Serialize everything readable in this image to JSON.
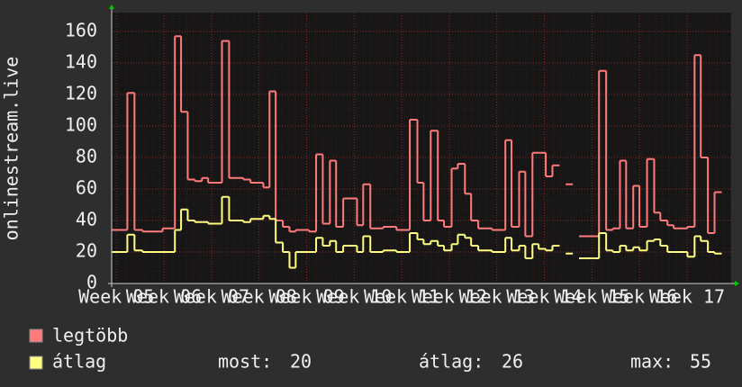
{
  "chart_data": {
    "type": "step",
    "y_label": "onlinestream.live",
    "xlim": [
      4.9,
      17.93
    ],
    "ylim": [
      0,
      172
    ],
    "yticks": [
      0,
      20,
      40,
      60,
      80,
      100,
      120,
      140,
      160
    ],
    "xticks": [
      {
        "value": 5,
        "label": "Week 05"
      },
      {
        "value": 6,
        "label": "Week 06"
      },
      {
        "value": 7,
        "label": "Week 07"
      },
      {
        "value": 8,
        "label": "Week 08"
      },
      {
        "value": 9,
        "label": "Week 09"
      },
      {
        "value": 10,
        "label": "Week 10"
      },
      {
        "value": 11,
        "label": "Week 11"
      },
      {
        "value": 12,
        "label": "Week 12"
      },
      {
        "value": 13,
        "label": "Week 13"
      },
      {
        "value": 14,
        "label": "Week 14"
      },
      {
        "value": 15,
        "label": "Week 15"
      },
      {
        "value": 16,
        "label": "Week 16"
      },
      {
        "value": 17,
        "label": "Week 17"
      }
    ],
    "grid": true,
    "x": [
      4.91,
      5.23,
      5.38,
      5.55,
      5.97,
      6.23,
      6.36,
      6.5,
      6.65,
      6.8,
      6.93,
      7.22,
      7.37,
      7.67,
      7.82,
      8.09,
      8.22,
      8.35,
      8.5,
      8.64,
      8.77,
      9.05,
      9.2,
      9.34,
      9.49,
      9.62,
      9.77,
      10.06,
      10.19,
      10.34,
      10.61,
      10.89,
      11.17,
      11.33,
      11.46,
      11.61,
      11.76,
      11.89,
      12.05,
      12.18,
      12.33,
      12.46,
      12.61,
      12.9,
      13.18,
      13.31,
      13.47,
      13.6,
      13.75,
      13.88,
      14.03,
      14.17,
      14.32,
      14.45,
      14.6,
      14.73,
      15.15,
      15.3,
      15.44,
      15.59,
      15.72,
      15.87,
      16.0,
      16.16,
      16.31,
      16.44,
      16.59,
      16.72,
      17.01,
      17.16,
      17.29,
      17.44,
      17.58,
      17.73
    ],
    "series": [
      {
        "name": "legtöbb",
        "color": "#ff7b7b",
        "values": [
          34,
          121,
          34,
          33,
          35,
          157,
          109,
          66,
          65,
          67,
          64,
          154,
          67,
          66,
          64,
          61,
          122,
          40,
          36,
          33,
          34,
          33,
          82,
          38,
          78,
          36,
          54,
          37,
          63,
          35,
          36,
          34,
          104,
          64,
          40,
          97,
          40,
          36,
          73,
          76,
          57,
          40,
          35,
          34,
          91,
          36,
          71,
          30,
          83,
          83,
          68,
          75,
          null,
          63,
          null,
          30,
          135,
          34,
          35,
          78,
          35,
          62,
          36,
          79,
          45,
          40,
          37,
          35,
          36,
          145,
          80,
          32,
          58,
          58
        ]
      },
      {
        "name": "átlag",
        "color": "#ffff80",
        "values": [
          20,
          31,
          21,
          20,
          20,
          34,
          47,
          40,
          39,
          39,
          38,
          55,
          40,
          39,
          41,
          43,
          41,
          26,
          20,
          10,
          20,
          20,
          29,
          24,
          27,
          20,
          24,
          20,
          30,
          20,
          21,
          20,
          32,
          28,
          25,
          27,
          24,
          21,
          25,
          31,
          29,
          24,
          21,
          20,
          29,
          21,
          24,
          16,
          25,
          22,
          21,
          24,
          null,
          19,
          null,
          16,
          32,
          21,
          20,
          24,
          21,
          23,
          21,
          27,
          28,
          24,
          20,
          20,
          17,
          30,
          27,
          20,
          19,
          19
        ]
      }
    ],
    "stats": [
      {
        "label": "most:",
        "value": 20
      },
      {
        "label": "átlag:",
        "value": 26
      },
      {
        "label": "max:",
        "value": 55
      }
    ]
  }
}
